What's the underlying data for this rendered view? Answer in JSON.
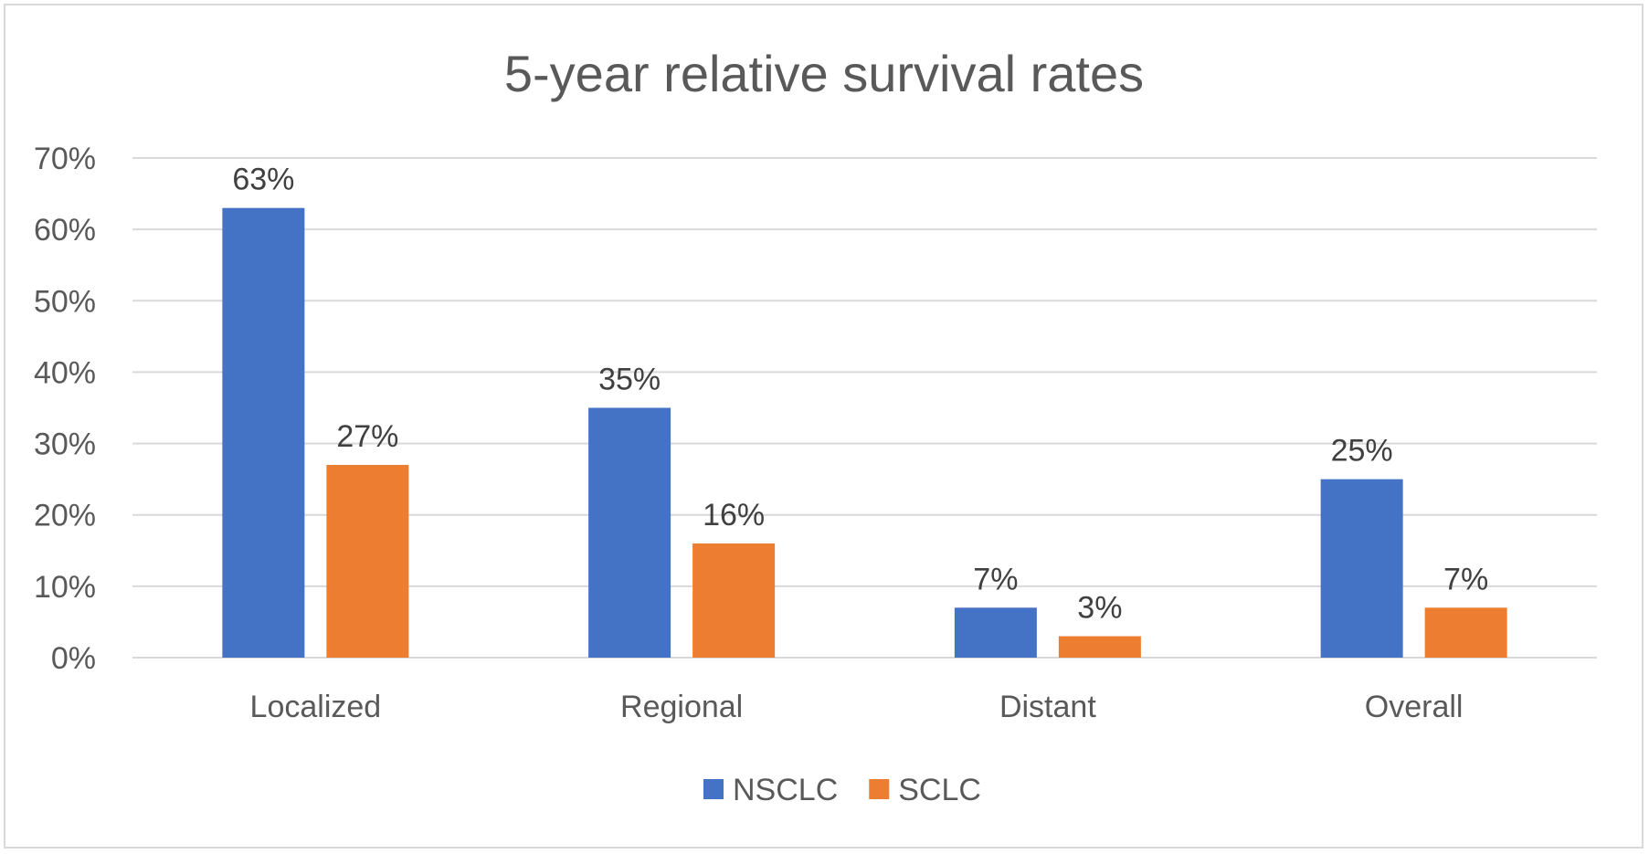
{
  "chart_data": {
    "type": "bar",
    "title": "5-year relative survival rates",
    "xlabel": "",
    "ylabel": "",
    "categories": [
      "Localized",
      "Regional",
      "Distant",
      "Overall"
    ],
    "series": [
      {
        "name": "NSCLC",
        "color": "#4472c4",
        "values": [
          63,
          35,
          7,
          25
        ],
        "labels": [
          "63%",
          "35%",
          "7%",
          "25%"
        ]
      },
      {
        "name": "SCLC",
        "color": "#ed7d31",
        "values": [
          27,
          16,
          3,
          7
        ],
        "labels": [
          "27%",
          "16%",
          "3%",
          "7%"
        ]
      }
    ],
    "ylim": [
      0,
      70
    ],
    "yticks": [
      0,
      10,
      20,
      30,
      40,
      50,
      60,
      70
    ],
    "ytick_labels": [
      "0%",
      "10%",
      "20%",
      "30%",
      "40%",
      "50%",
      "60%",
      "70%"
    ],
    "grid": true,
    "legend": "bottom"
  }
}
